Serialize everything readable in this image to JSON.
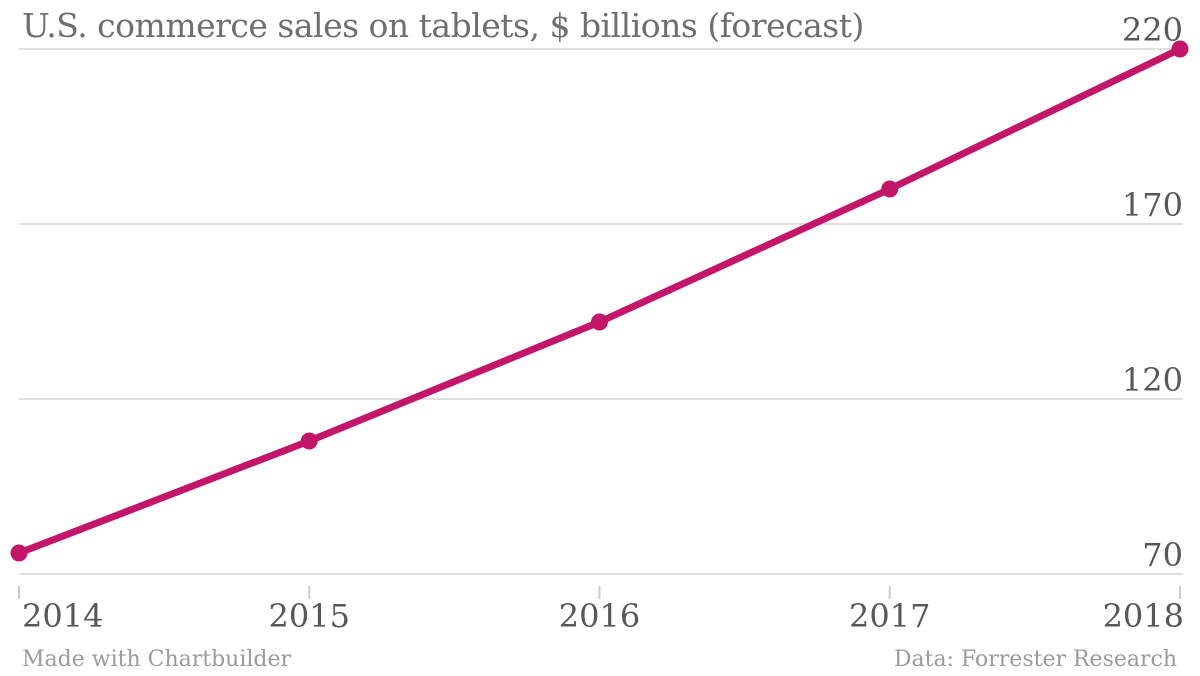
{
  "header": {
    "title": "U.S. commerce sales on tablets, $ billions (forecast)"
  },
  "footer": {
    "credit": "Made with Chartbuilder",
    "source": "Data: Forrester Research"
  },
  "colors": {
    "line": "#c31569",
    "grid": "#e0e0e0",
    "tick": "#cccccc",
    "title_text": "#6f6f6f",
    "axis_text": "#58585a",
    "footer_text": "#9b9b9b",
    "background": "#ffffff"
  },
  "chart_data": {
    "type": "line",
    "title": "U.S. commerce sales on tablets, $ billions (forecast)",
    "x": [
      "2014",
      "2015",
      "2016",
      "2017",
      "2018"
    ],
    "series": [
      {
        "name": "U.S. commerce sales on tablets",
        "values": [
          76,
          108,
          142,
          180,
          220
        ]
      }
    ],
    "ylabel": "$ billions",
    "yticks": [
      70,
      120,
      170,
      220
    ],
    "ylim": [
      70,
      220
    ],
    "y_axis_side": "right",
    "grid": "horizontal-only",
    "legend": "none",
    "markers": true
  }
}
